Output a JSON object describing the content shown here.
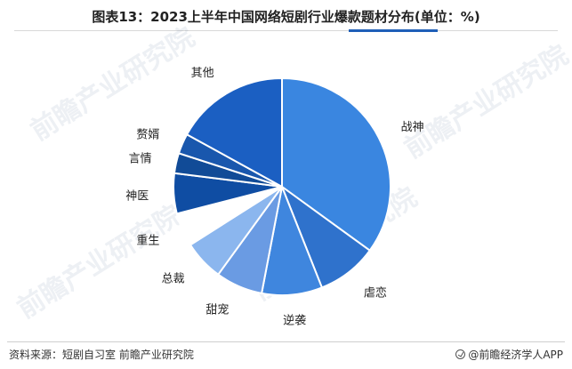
{
  "title": "图表13：2023上半年中国网络短剧行业爆款题材分布(单位：%)",
  "source": "资料来源：短剧自习室 前瞻产业研究院",
  "brand": "@前瞻经济学人APP",
  "watermark": "前瞻产业研究院",
  "chart_data": {
    "type": "pie",
    "title": "图表13：2023上半年中国网络短剧行业爆款题材分布(单位：%)",
    "unit": "%",
    "slices": [
      {
        "label": "战神",
        "value": 35,
        "color": "#3a86e0"
      },
      {
        "label": "虐恋",
        "value": 9,
        "color": "#2f72cc"
      },
      {
        "label": "逆袭",
        "value": 9,
        "color": "#3f86de"
      },
      {
        "label": "甜宠",
        "value": 7,
        "color": "#6a9be3"
      },
      {
        "label": "总裁",
        "value": 6,
        "color": "#8bb6ee"
      },
      {
        "label": "重生",
        "value": 5,
        "color": "#ffffff"
      },
      {
        "label": "神医",
        "value": 6,
        "color": "#0f4da3"
      },
      {
        "label": "言情",
        "value": 3,
        "color": "#114b97"
      },
      {
        "label": "赘婿",
        "value": 3,
        "color": "#1957ad"
      },
      {
        "label": "其他",
        "value": 17,
        "color": "#1b5fc2"
      }
    ]
  }
}
